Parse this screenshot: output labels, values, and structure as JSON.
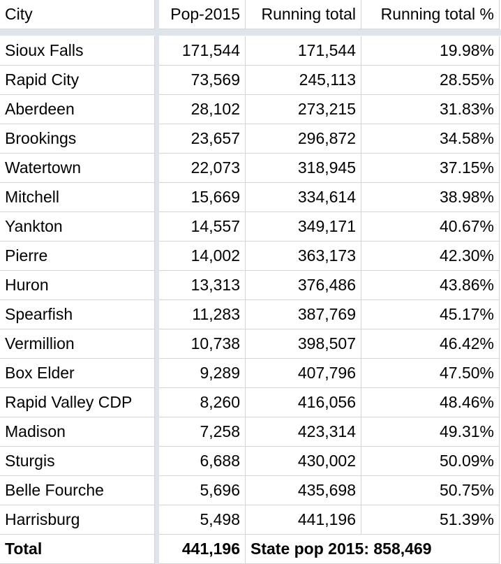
{
  "table": {
    "header": [
      "City",
      "Pop-2015",
      "Running total",
      "Running total %"
    ],
    "rows": [
      [
        "Sioux Falls",
        "171,544",
        "171,544",
        "19.98%"
      ],
      [
        "Rapid City",
        "73,569",
        "245,113",
        "28.55%"
      ],
      [
        "Aberdeen",
        "28,102",
        "273,215",
        "31.83%"
      ],
      [
        "Brookings",
        "23,657",
        "296,872",
        "34.58%"
      ],
      [
        "Watertown",
        "22,073",
        "318,945",
        "37.15%"
      ],
      [
        "Mitchell",
        "15,669",
        "334,614",
        "38.98%"
      ],
      [
        "Yankton",
        "14,557",
        "349,171",
        "40.67%"
      ],
      [
        "Pierre",
        "14,002",
        "363,173",
        "42.30%"
      ],
      [
        "Huron",
        "13,313",
        "376,486",
        "43.86%"
      ],
      [
        "Spearfish",
        "11,283",
        "387,769",
        "45.17%"
      ],
      [
        "Vermillion",
        "10,738",
        "398,507",
        "46.42%"
      ],
      [
        "Box Elder",
        "9,289",
        "407,796",
        "47.50%"
      ],
      [
        "Rapid Valley CDP",
        "8,260",
        "416,056",
        "48.46%"
      ],
      [
        "Madison",
        "7,258",
        "423,314",
        "49.31%"
      ],
      [
        "Sturgis",
        "6,688",
        "430,002",
        "50.09%"
      ],
      [
        "Belle Fourche",
        "5,696",
        "435,698",
        "50.75%"
      ],
      [
        "Harrisburg",
        "5,498",
        "441,196",
        "51.39%"
      ]
    ],
    "total": [
      "Total",
      "441,196",
      "State pop 2015: 858,469"
    ]
  }
}
